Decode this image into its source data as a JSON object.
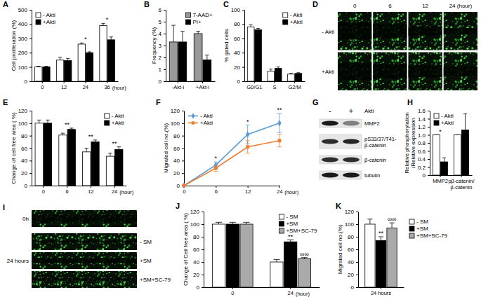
{
  "chart_data": [
    {
      "panel": "A",
      "type": "bar",
      "y_label": "Cell proliferation (%)",
      "x_label": "(hour)",
      "categories": [
        "0",
        "12",
        "24",
        "36"
      ],
      "ylim": [
        0,
        500
      ],
      "yticks": [
        0,
        100,
        200,
        300,
        400,
        500
      ],
      "legend": "top-left",
      "series": [
        {
          "name": "- Akti",
          "color": "#ffffff",
          "values": [
            100,
            148,
            260,
            390
          ],
          "errors": [
            5,
            20,
            8,
            15
          ]
        },
        {
          "name": "+Akti",
          "color": "#000000",
          "values": [
            100,
            145,
            200,
            290
          ],
          "errors": [
            5,
            15,
            6,
            20
          ]
        }
      ],
      "annotations": [
        {
          "text": "*",
          "category": "24"
        },
        {
          "text": "*",
          "category": "36"
        }
      ]
    },
    {
      "panel": "B",
      "type": "bar",
      "y_label": "Frequency (%)",
      "categories": [
        "-Akt-i",
        "+Akt-i"
      ],
      "ylim": [
        0,
        6
      ],
      "yticks": [
        0,
        1,
        2,
        3,
        4,
        5,
        6
      ],
      "legend": "top-right",
      "series": [
        {
          "name": "7-AAD+",
          "color": "#999999",
          "values": [
            3.3,
            4.0
          ],
          "errors": [
            1.4,
            0.2
          ]
        },
        {
          "name": "PI+",
          "color": "#000000",
          "values": [
            3.3,
            1.8
          ],
          "errors": [
            0.9,
            0.4
          ]
        }
      ]
    },
    {
      "panel": "C",
      "type": "bar",
      "y_label": "% gated cells",
      "categories": [
        "G0/G1",
        "S",
        "G2/M"
      ],
      "ylim": [
        0,
        100
      ],
      "yticks": [
        0,
        20,
        40,
        60,
        80,
        100
      ],
      "legend": "top-right",
      "series": [
        {
          "name": "- Akti",
          "color": "#ffffff",
          "values": [
            76,
            14,
            10
          ],
          "errors": [
            3,
            3,
            1
          ]
        },
        {
          "name": "+Akti",
          "color": "#000000",
          "values": [
            72,
            18,
            11
          ],
          "errors": [
            2,
            2,
            1
          ]
        }
      ]
    },
    {
      "panel": "D",
      "type": "image",
      "columns": [
        "0",
        "6",
        "12",
        "24 (hour)"
      ],
      "rows": [
        "- Akti",
        "+Akti"
      ]
    },
    {
      "panel": "E",
      "type": "bar",
      "y_label": "Change of cell free area ( %)",
      "x_label": "(hour)",
      "categories": [
        "0",
        "6",
        "12",
        "24"
      ],
      "ylim": [
        0,
        120
      ],
      "yticks": [
        0,
        20,
        40,
        60,
        80,
        100,
        120
      ],
      "legend": "top-right",
      "series": [
        {
          "name": "- Akti",
          "color": "#ffffff",
          "values": [
            100,
            81,
            54,
            47
          ],
          "errors": [
            5,
            3,
            6,
            5
          ]
        },
        {
          "name": "+Akti",
          "color": "#000000",
          "values": [
            100,
            90,
            70,
            58
          ],
          "errors": [
            5,
            2,
            3,
            4
          ]
        }
      ],
      "annotations": [
        {
          "text": "**",
          "category": "6"
        },
        {
          "text": "**",
          "category": "12"
        },
        {
          "text": "**",
          "category": "24"
        }
      ]
    },
    {
      "panel": "F",
      "type": "line",
      "y_label": "Migrated cell no.(%)",
      "x_label": "(hour)",
      "categories": [
        "0",
        "6",
        "12",
        "24"
      ],
      "ylim": [
        0,
        120
      ],
      "yticks": [
        0,
        20,
        40,
        60,
        80,
        100,
        120
      ],
      "legend": "top-left",
      "series": [
        {
          "name": "- Akti",
          "color": "#5b9bd5",
          "marker": "diamond",
          "values": [
            0,
            33,
            82,
            100
          ],
          "errors": [
            0,
            5,
            15,
            15
          ]
        },
        {
          "name": "+Akti",
          "color": "#ed7d31",
          "marker": "square",
          "values": [
            0,
            28,
            62,
            72
          ],
          "errors": [
            0,
            5,
            10,
            10
          ]
        }
      ],
      "annotations": [
        {
          "text": "*",
          "category": "6"
        },
        {
          "text": "*",
          "category": "12"
        },
        {
          "text": "**",
          "category": "24"
        }
      ]
    },
    {
      "panel": "G",
      "type": "blot",
      "treatment": "Akti",
      "lanes": [
        "-",
        "+"
      ],
      "rows": [
        [
          "MMP2"
        ],
        [
          "pS33/37/T41-",
          "β-catenin"
        ],
        [
          "β-catenin"
        ],
        [
          "tubulin"
        ]
      ]
    },
    {
      "panel": "H",
      "type": "bar",
      "y_label": [
        "Relative phosphorylation",
        "/Relative expression"
      ],
      "categories": [
        "MMP2",
        [
          "pβ-catenin/",
          "β-catenin"
        ]
      ],
      "ylim": [
        0,
        1.6
      ],
      "yticks": [
        0,
        0.2,
        0.4,
        0.6,
        0.8,
        {
          "value": 1,
          "label": "1.0"
        },
        1.2,
        1.4,
        1.6
      ],
      "legend": "top-left",
      "series": [
        {
          "name": "- Akti",
          "color": "#ffffff",
          "values": [
            1.0,
            1.0
          ],
          "errors": [
            0,
            0
          ]
        },
        {
          "name": "+Akti",
          "color": "#000000",
          "values": [
            0.33,
            1.12
          ],
          "errors": [
            0.1,
            0.4
          ]
        }
      ],
      "annotations": [
        {
          "text": "*",
          "category": "MMP2"
        }
      ]
    },
    {
      "panel": "I",
      "type": "image",
      "rows": [
        {
          "time": "0h"
        },
        {
          "time": "24 hours",
          "label": "- SM"
        },
        {
          "label": "+SM"
        },
        {
          "label": "+SM+SC-79"
        }
      ]
    },
    {
      "panel": "J",
      "type": "bar",
      "y_label": "Change of Cell free area ( %)",
      "x_label": "(hour)",
      "categories": [
        "0",
        "24"
      ],
      "ylim": [
        0,
        120
      ],
      "yticks": [
        0,
        20,
        40,
        60,
        80,
        100,
        120
      ],
      "legend": "top-right",
      "series": [
        {
          "name": "- SM",
          "color": "#ffffff",
          "values": [
            100,
            40
          ],
          "errors": [
            3,
            4
          ]
        },
        {
          "name": "+SM",
          "color": "#000000",
          "values": [
            100,
            72
          ],
          "errors": [
            3,
            3
          ]
        },
        {
          "name": "+SM+SC-79",
          "color": "#aaaaaa",
          "values": [
            100,
            45
          ],
          "errors": [
            3,
            2
          ]
        }
      ],
      "annotations": [
        {
          "text": "**",
          "category": "24",
          "series": "+SM"
        },
        {
          "text": "∞∞",
          "category": "24",
          "series": "+SM+SC-79"
        }
      ]
    },
    {
      "panel": "K",
      "type": "bar",
      "y_label": "Migrated cell no.(%)",
      "categories": [
        "24 hours"
      ],
      "ylim": [
        0,
        120
      ],
      "yticks": [
        0,
        20,
        40,
        60,
        80,
        100,
        120
      ],
      "legend": "right",
      "series": [
        {
          "name": "- SM",
          "color": "#ffffff",
          "values": [
            100
          ],
          "errors": [
            8
          ]
        },
        {
          "name": "+SM",
          "color": "#000000",
          "values": [
            74
          ],
          "errors": [
            6
          ]
        },
        {
          "name": "+SM+SC-79",
          "color": "#aaaaaa",
          "values": [
            94
          ],
          "errors": [
            8
          ]
        }
      ],
      "annotations": [
        {
          "text": "**",
          "category": "24 hours",
          "series": "+SM"
        },
        {
          "text": "∞∞",
          "category": "24 hours",
          "series": "+SM+SC-79"
        }
      ]
    }
  ]
}
